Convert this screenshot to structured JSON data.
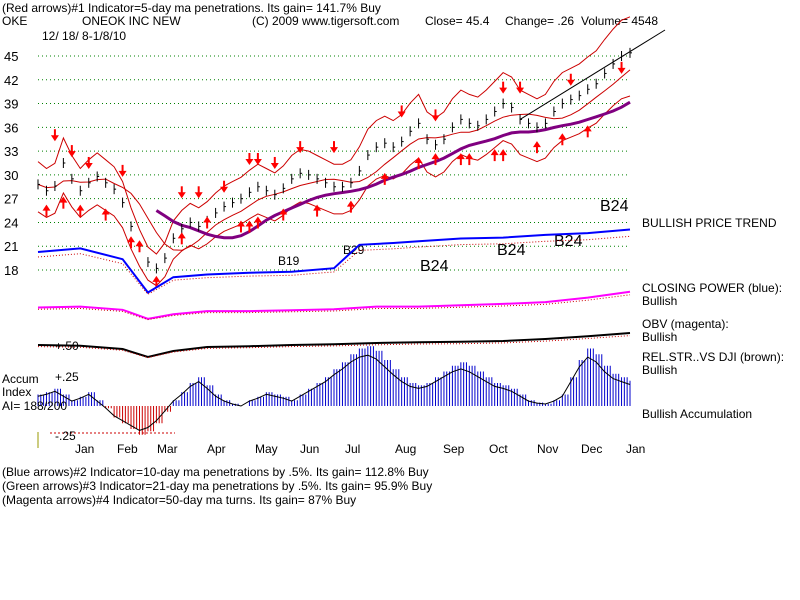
{
  "header": {
    "line1": "(Red arrows)#1 Indicator=5-day ma penetrations. Its gain= 141.7% Buy",
    "symbol": "OKE",
    "company": "ONEOK INC NEW",
    "copyright": "(C) 2009 www.tigersoft.com",
    "close": "Close=  45.4",
    "change": "Change= .26",
    "volume": "Volume= 4548",
    "date_range": "12/ 18/ 8-1/8/10"
  },
  "footer": {
    "line2": "(Blue arrows)#2 Indicator=10-day ma penetrations by .5%. Its gain= 112.8% Buy",
    "line3": "(Green arrows)#3 Indicator=21-day ma penetrations by .5%. Its gain= 95.9% Buy",
    "line4": "(Magenta arrows)#4 Indicator=50-day ma turns. Its gain= 87% Buy"
  },
  "panel_labels": {
    "trend": "BULLISH PRICE TREND",
    "cp_title": "CLOSING POWER (blue):",
    "cp_value": "Bullish",
    "obv_title": "OBV (magenta):",
    "obv_value": "Bullish",
    "rs_title": "REL.STR..VS DJI (brown):",
    "rs_value": "Bullish",
    "accum_value": "Bullish Accumulation",
    "accum_label_1": "Accum",
    "accum_label_2": "Index",
    "accum_ai": "AI= 188/200",
    "plus50": "+.50",
    "plus25": "+.25",
    "minus25": "-.25"
  },
  "signals": {
    "b19": "B19",
    "b29": "B29",
    "b24": "B24"
  },
  "colors": {
    "price_bar": "#000000",
    "bands": "#cc0000",
    "ma50": "#800080",
    "closing_power": "#0000ff",
    "obv": "#ff00ff",
    "rel_str": "#000000",
    "accum_pos": "#0000cc",
    "accum_neg": "#cc0000",
    "arrows": "#ff0000",
    "grid": "#008000"
  },
  "chart_data": {
    "type": "line",
    "title": "ONEOK INC NEW",
    "y_ticks": [
      45,
      42,
      39,
      36,
      33,
      30,
      27,
      24,
      21,
      18
    ],
    "months": [
      "Jan",
      "Feb",
      "Mar",
      "Apr",
      "May",
      "Jun",
      "Jul",
      "Aug",
      "Sep",
      "Oct",
      "Nov",
      "Dec",
      "Jan"
    ],
    "series": [
      {
        "values": [
          [
            0,
            28.8
          ],
          [
            1,
            28.0
          ],
          [
            2,
            28.6
          ],
          [
            3,
            31.5
          ],
          [
            4,
            29.5
          ],
          [
            5,
            28.0
          ],
          [
            6,
            29.0
          ],
          [
            7,
            29.8
          ],
          [
            8,
            29.0
          ],
          [
            9,
            28.2
          ],
          [
            10,
            26.5
          ],
          [
            11,
            23.5
          ],
          [
            12,
            21.0
          ],
          [
            13,
            19.0
          ],
          [
            14,
            18.2
          ],
          [
            15,
            19.5
          ],
          [
            16,
            22.0
          ],
          [
            17,
            23.2
          ],
          [
            18,
            24.0
          ],
          [
            19,
            23.5
          ],
          [
            20,
            24.2
          ],
          [
            21,
            25.2
          ],
          [
            22,
            26.0
          ],
          [
            23,
            26.5
          ],
          [
            24,
            27.0
          ],
          [
            25,
            27.8
          ],
          [
            26,
            28.5
          ],
          [
            27,
            28.0
          ],
          [
            28,
            27.5
          ],
          [
            29,
            28.3
          ],
          [
            30,
            29.5
          ],
          [
            31,
            30.2
          ],
          [
            32,
            30.0
          ],
          [
            33,
            29.5
          ],
          [
            34,
            29.0
          ],
          [
            35,
            28.5
          ],
          [
            36,
            28.5
          ],
          [
            37,
            29.0
          ],
          [
            38,
            30.5
          ],
          [
            39,
            32.5
          ],
          [
            40,
            33.5
          ],
          [
            41,
            34.0
          ],
          [
            42,
            33.5
          ],
          [
            43,
            34.2
          ],
          [
            44,
            35.5
          ],
          [
            45,
            36.5
          ],
          [
            46,
            34.5
          ],
          [
            47,
            33.8
          ],
          [
            48,
            34.5
          ],
          [
            49,
            36.0
          ],
          [
            50,
            37.0
          ],
          [
            51,
            36.5
          ],
          [
            52,
            36.2
          ],
          [
            53,
            37.0
          ],
          [
            54,
            38.0
          ],
          [
            55,
            39.0
          ],
          [
            56,
            38.5
          ],
          [
            57,
            37.0
          ],
          [
            58,
            36.5
          ],
          [
            59,
            36.0
          ],
          [
            60,
            36.5
          ],
          [
            61,
            38.0
          ],
          [
            62,
            39.0
          ],
          [
            63,
            39.5
          ],
          [
            64,
            40.0
          ],
          [
            65,
            40.8
          ],
          [
            66,
            41.5
          ],
          [
            67,
            42.8
          ],
          [
            68,
            44.0
          ],
          [
            69,
            45.0
          ],
          [
            70,
            45.4
          ]
        ]
      },
      {
        "name": "CLOSING POWER (blue)",
        "values": [
          [
            0,
            0.7
          ],
          [
            5,
            0.74
          ],
          [
            10,
            0.62
          ],
          [
            13,
            0.25
          ],
          [
            16,
            0.42
          ],
          [
            20,
            0.45
          ],
          [
            25,
            0.47
          ],
          [
            30,
            0.48
          ],
          [
            35,
            0.52
          ],
          [
            38,
            0.78
          ],
          [
            42,
            0.8
          ],
          [
            45,
            0.82
          ],
          [
            50,
            0.85
          ],
          [
            55,
            0.86
          ],
          [
            60,
            0.89
          ],
          [
            65,
            0.91
          ],
          [
            70,
            0.95
          ]
        ]
      },
      {
        "name": "OBV (magenta)",
        "values": [
          [
            0,
            0.5
          ],
          [
            5,
            0.52
          ],
          [
            10,
            0.45
          ],
          [
            13,
            0.25
          ],
          [
            16,
            0.35
          ],
          [
            20,
            0.42
          ],
          [
            25,
            0.42
          ],
          [
            30,
            0.44
          ],
          [
            35,
            0.46
          ],
          [
            40,
            0.52
          ],
          [
            45,
            0.52
          ],
          [
            50,
            0.55
          ],
          [
            55,
            0.58
          ],
          [
            60,
            0.62
          ],
          [
            65,
            0.72
          ],
          [
            70,
            0.85
          ]
        ]
      },
      {
        "name": "REL.STR..VS DJI (brown)",
        "values": [
          [
            0,
            0.5
          ],
          [
            5,
            0.48
          ],
          [
            10,
            0.4
          ],
          [
            13,
            0.2
          ],
          [
            16,
            0.35
          ],
          [
            20,
            0.45
          ],
          [
            25,
            0.47
          ],
          [
            30,
            0.5
          ],
          [
            35,
            0.52
          ],
          [
            40,
            0.55
          ],
          [
            45,
            0.57
          ],
          [
            50,
            0.58
          ],
          [
            55,
            0.6
          ],
          [
            60,
            0.65
          ],
          [
            65,
            0.72
          ],
          [
            70,
            0.8
          ]
        ]
      }
    ],
    "accum_index": [
      0.1,
      0.12,
      0.15,
      0.1,
      0.05,
      0.08,
      0.12,
      0.05,
      -0.02,
      -0.1,
      -0.15,
      -0.2,
      -0.25,
      -0.22,
      -0.15,
      -0.05,
      0.05,
      0.12,
      0.2,
      0.25,
      0.18,
      0.1,
      0.05,
      0.02,
      0.0,
      0.05,
      0.08,
      0.12,
      0.1,
      0.08,
      0.05,
      0.1,
      0.15,
      0.2,
      0.25,
      0.32,
      0.38,
      0.45,
      0.5,
      0.52,
      0.48,
      0.4,
      0.32,
      0.25,
      0.2,
      0.18,
      0.2,
      0.25,
      0.3,
      0.35,
      0.38,
      0.35,
      0.3,
      0.25,
      0.2,
      0.18,
      0.15,
      0.1,
      0.05,
      0.03,
      0.02,
      0.05,
      0.1,
      0.25,
      0.4,
      0.5,
      0.45,
      0.35,
      0.28,
      0.25,
      0.22
    ],
    "red_arrows_down": [
      [
        2,
        34.5
      ],
      [
        4,
        32.5
      ],
      [
        6,
        31.0
      ],
      [
        10,
        30.0
      ],
      [
        17,
        27.3
      ],
      [
        19,
        27.3
      ],
      [
        22,
        28.0
      ],
      [
        25,
        31.5
      ],
      [
        26,
        31.5
      ],
      [
        28,
        31.0
      ],
      [
        31,
        33.0
      ],
      [
        35,
        33.0
      ],
      [
        43,
        37.5
      ],
      [
        47,
        37.0
      ],
      [
        55,
        40.5
      ],
      [
        57,
        40.5
      ],
      [
        63,
        41.5
      ],
      [
        69,
        43.0
      ]
    ],
    "red_arrows_up": [
      [
        1,
        26.0
      ],
      [
        3,
        27.0
      ],
      [
        5,
        26.0
      ],
      [
        8,
        25.5
      ],
      [
        11,
        22.0
      ],
      [
        12,
        21.5
      ],
      [
        14,
        17.0
      ],
      [
        17,
        22.5
      ],
      [
        20,
        24.5
      ],
      [
        24,
        24.0
      ],
      [
        25,
        24.0
      ],
      [
        26,
        24.5
      ],
      [
        29,
        25.5
      ],
      [
        33,
        26.0
      ],
      [
        37,
        26.5
      ],
      [
        41,
        30.0
      ],
      [
        45,
        32.0
      ],
      [
        47,
        32.5
      ],
      [
        50,
        32.5
      ],
      [
        51,
        32.5
      ],
      [
        54,
        33.0
      ],
      [
        55,
        33.0
      ],
      [
        59,
        34.0
      ],
      [
        62,
        35.0
      ],
      [
        65,
        36.0
      ]
    ]
  }
}
